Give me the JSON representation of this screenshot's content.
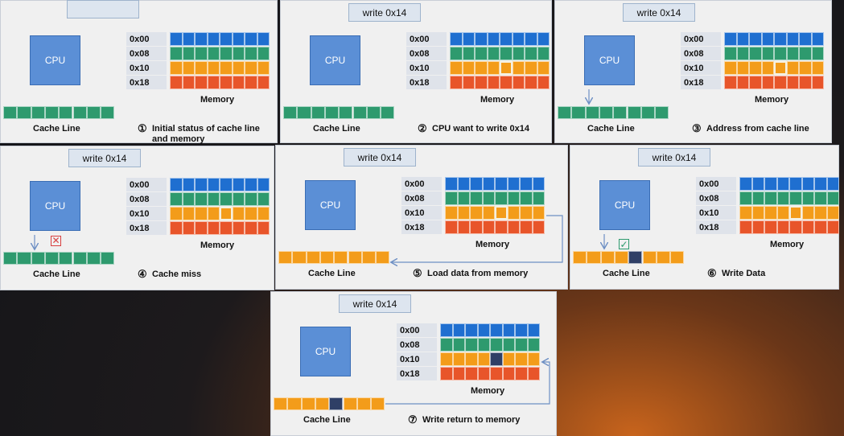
{
  "panels": [
    {
      "cpu": "CPU",
      "addresses": [
        "0x00",
        "0x08",
        "0x10",
        "0x18"
      ],
      "memory_label": "Memory",
      "cache_label": "Cache Line",
      "step": "①",
      "caption": "Initial status of cache line and memory"
    },
    {
      "instruction": "write 0x14",
      "cpu": "CPU",
      "addresses": [
        "0x00",
        "0x08",
        "0x10",
        "0x18"
      ],
      "memory_label": "Memory",
      "cache_label": "Cache Line",
      "step": "②",
      "caption": "CPU want to write 0x14"
    },
    {
      "instruction": "write 0x14",
      "cpu": "CPU",
      "addresses": [
        "0x00",
        "0x08",
        "0x10",
        "0x18"
      ],
      "memory_label": "Memory",
      "cache_label": "Cache Line",
      "step": "③",
      "caption": "Address from cache line"
    },
    {
      "instruction": "write 0x14",
      "cpu": "CPU",
      "addresses": [
        "0x00",
        "0x08",
        "0x10",
        "0x18"
      ],
      "memory_label": "Memory",
      "cache_label": "Cache Line",
      "step": "④",
      "caption": "Cache miss"
    },
    {
      "instruction": "write 0x14",
      "cpu": "CPU",
      "addresses": [
        "0x00",
        "0x08",
        "0x10",
        "0x18"
      ],
      "memory_label": "Memory",
      "cache_label": "Cache Line",
      "step": "⑤",
      "caption": "Load data from memory"
    },
    {
      "instruction": "write 0x14",
      "cpu": "CPU",
      "addresses": [
        "0x00",
        "0x08",
        "0x10",
        "0x18"
      ],
      "memory_label": "Memory",
      "cache_label": "Cache Line",
      "step": "⑥",
      "caption": "Write Data"
    },
    {
      "instruction": "write 0x14",
      "cpu": "CPU",
      "addresses": [
        "0x00",
        "0x08",
        "0x10",
        "0x18"
      ],
      "memory_label": "Memory",
      "cache_label": "Cache Line",
      "step": "⑦",
      "caption": "Write return to memory"
    }
  ]
}
